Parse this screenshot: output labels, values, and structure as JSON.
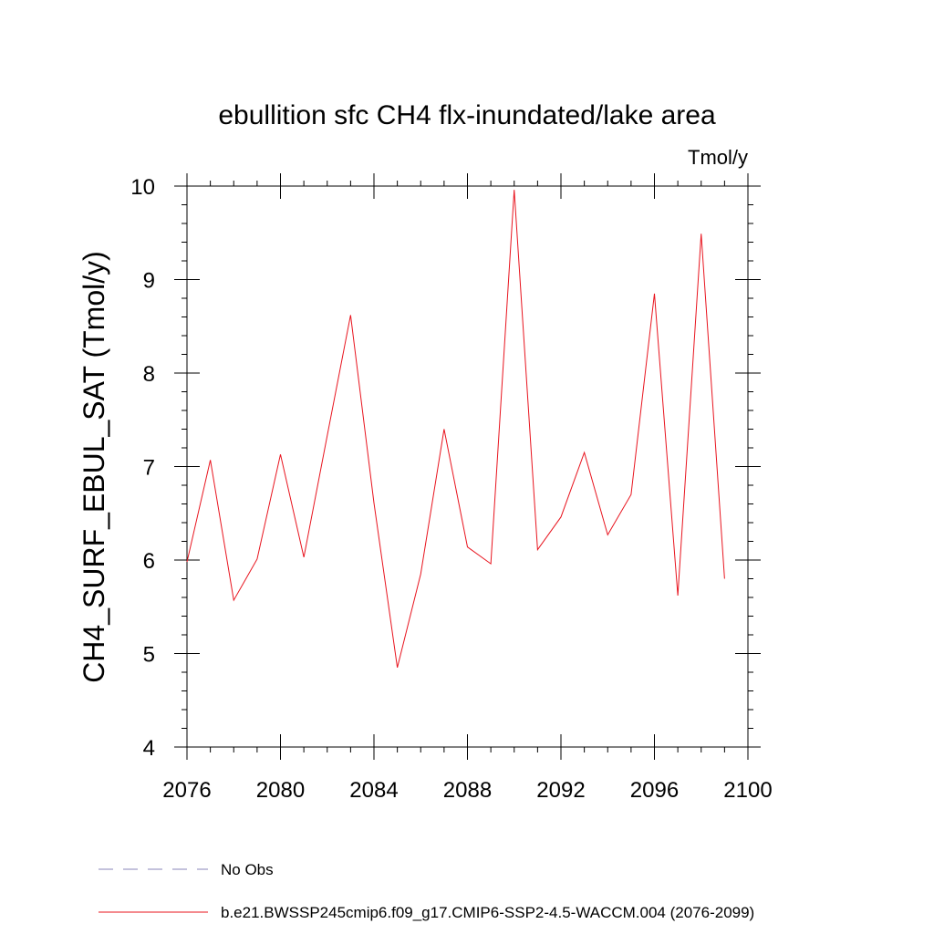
{
  "chart_data": {
    "type": "line",
    "title": "ebullition sfc CH4 flx-inundated/lake area",
    "units_label": "Tmol/y",
    "ylabel": "CH4_SURF_EBUL_SAT  (Tmol/y)",
    "xlabel": "",
    "xlim": [
      2076,
      2100
    ],
    "ylim": [
      4,
      10
    ],
    "x_ticks": [
      2076,
      2080,
      2084,
      2088,
      2092,
      2096,
      2100
    ],
    "y_ticks": [
      4,
      5,
      6,
      7,
      8,
      9,
      10
    ],
    "x_minor_step": 1,
    "y_minor_step": 0.2,
    "grid": false,
    "series": [
      {
        "name": "b.e21.BWSSP245cmip6.f09_g17.CMIP6-SSP2-4.5-WACCM.004 (2076-2099)",
        "color": "#e8141e",
        "x": [
          2076,
          2077,
          2078,
          2079,
          2080,
          2081,
          2082,
          2083,
          2084,
          2085,
          2086,
          2087,
          2088,
          2089,
          2090,
          2091,
          2092,
          2093,
          2094,
          2095,
          2096,
          2097,
          2098,
          2099
        ],
        "values": [
          5.98,
          7.07,
          5.57,
          6.01,
          7.13,
          6.03,
          7.33,
          8.62,
          6.61,
          4.85,
          5.85,
          7.4,
          6.14,
          5.96,
          9.96,
          6.11,
          6.46,
          7.15,
          6.27,
          6.7,
          8.85,
          5.62,
          9.49,
          5.8
        ]
      }
    ],
    "legend": [
      {
        "label": "No Obs",
        "style": "dashed",
        "color": "#8a86b8"
      },
      {
        "label": "b.e21.BWSSP245cmip6.f09_g17.CMIP6-SSP2-4.5-WACCM.004 (2076-2099)",
        "style": "solid",
        "color": "#e8141e"
      }
    ],
    "legend_position": "bottom"
  }
}
